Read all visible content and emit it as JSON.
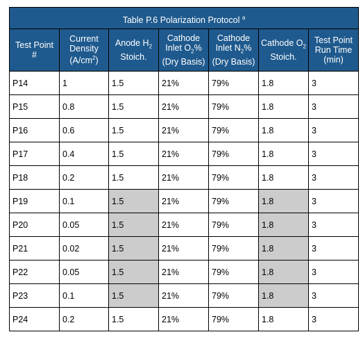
{
  "table": {
    "title": "Table P.6 Polarization Protocol",
    "title_footnote": "a",
    "headers": [
      {
        "pre": "Test Point",
        "post": "#"
      },
      {
        "pre": "Current Density (A/cm",
        "sup": "2",
        "post": ")"
      },
      {
        "pre": "Anode H",
        "sub": "2",
        "post": " Stoich."
      },
      {
        "pre": "Cathode Inlet O",
        "sub": "2",
        "post": "% (Dry Basis)"
      },
      {
        "pre": "Cathode Inlet N",
        "sub": "2",
        "post": "% (Dry Basis)"
      },
      {
        "pre": "Cathode O",
        "sub": "2",
        "post": " Stoich."
      },
      {
        "pre": "Test Point Run Time",
        "post": "(min)"
      }
    ],
    "rows": [
      {
        "cells": [
          "P14",
          "1",
          "1.5",
          "21%",
          "79%",
          "1.8",
          "3"
        ],
        "shaded": false
      },
      {
        "cells": [
          "P15",
          "0.8",
          "1.5",
          "21%",
          "79%",
          "1.8",
          "3"
        ],
        "shaded": false
      },
      {
        "cells": [
          "P16",
          "0.6",
          "1.5",
          "21%",
          "79%",
          "1.8",
          "3"
        ],
        "shaded": false
      },
      {
        "cells": [
          "P17",
          "0.4",
          "1.5",
          "21%",
          "79%",
          "1.8",
          "3"
        ],
        "shaded": false
      },
      {
        "cells": [
          "P18",
          "0.2",
          "1.5",
          "21%",
          "79%",
          "1.8",
          "3"
        ],
        "shaded": false
      },
      {
        "cells": [
          "P19",
          "0.1",
          "1.5",
          "21%",
          "79%",
          "1.8",
          "3"
        ],
        "shaded": true
      },
      {
        "cells": [
          "P20",
          "0.05",
          "1.5",
          "21%",
          "79%",
          "1.8",
          "3"
        ],
        "shaded": true
      },
      {
        "cells": [
          "P21",
          "0.02",
          "1.5",
          "21%",
          "79%",
          "1.8",
          "3"
        ],
        "shaded": true
      },
      {
        "cells": [
          "P22",
          "0.05",
          "1.5",
          "21%",
          "79%",
          "1.8",
          "3"
        ],
        "shaded": true
      },
      {
        "cells": [
          "P23",
          "0.1",
          "1.5",
          "21%",
          "79%",
          "1.8",
          "3"
        ],
        "shaded": true
      },
      {
        "cells": [
          "P24",
          "0.2",
          "1.5",
          "21%",
          "79%",
          "1.8",
          "3"
        ],
        "shaded": false
      }
    ],
    "colors": {
      "header_bg": "#1f5a8e",
      "shade": "#cccccc"
    }
  }
}
